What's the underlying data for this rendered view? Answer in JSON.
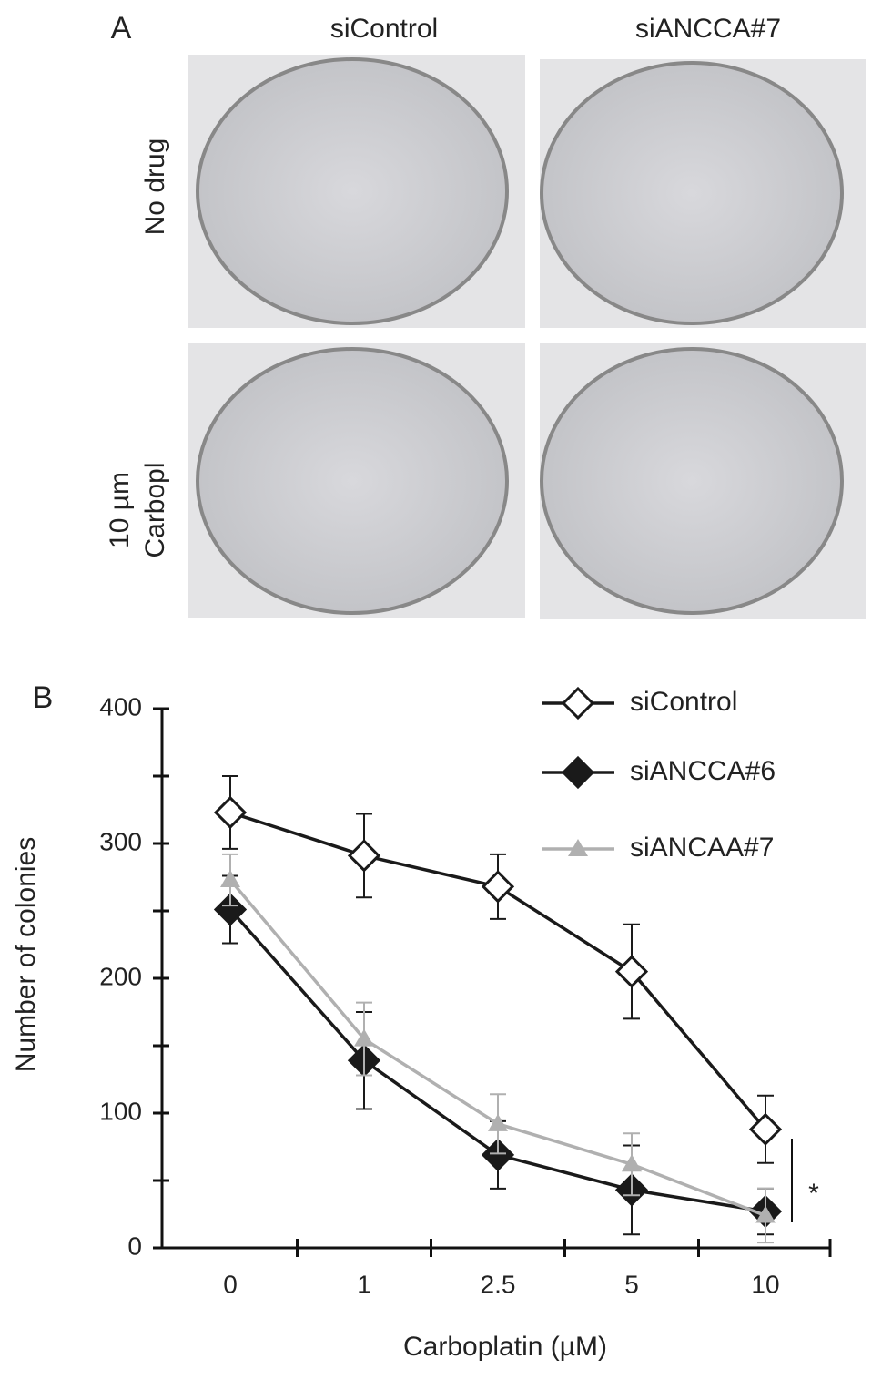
{
  "panel_a": {
    "label": "A",
    "columns": [
      "siControl",
      "siANCCA#7"
    ],
    "rows": [
      [
        "No drug"
      ],
      [
        "10 µm",
        "Carbopl"
      ]
    ]
  },
  "chart_data": {
    "type": "line",
    "label": "B",
    "x_label": "Carboplatin (µM)",
    "y_label": "Number of colonies",
    "categories": [
      "0",
      "1",
      "2.5",
      "5",
      "10"
    ],
    "series": [
      {
        "name": "siControl",
        "color": "#1a1a1a",
        "marker": "open-diamond",
        "values": [
          323,
          291,
          268,
          205,
          88
        ],
        "errors": [
          27,
          31,
          24,
          35,
          25
        ]
      },
      {
        "name": "siANCCA#6",
        "color": "#1a1a1a",
        "marker": "diamond",
        "values": [
          251,
          139,
          69,
          43,
          27
        ],
        "errors": [
          25,
          36,
          25,
          33,
          17
        ]
      },
      {
        "name": "siANCAA#7",
        "color": "#b0b0b0",
        "marker": "triangle",
        "values": [
          273,
          155,
          92,
          62,
          24
        ],
        "errors": [
          19,
          27,
          22,
          23,
          20
        ]
      }
    ],
    "ylim": [
      0,
      400
    ],
    "yticks": [
      0,
      100,
      200,
      300,
      400
    ],
    "minor_yticks": [
      50,
      150,
      250,
      350
    ],
    "annotation": "*",
    "legend": "top-right"
  }
}
